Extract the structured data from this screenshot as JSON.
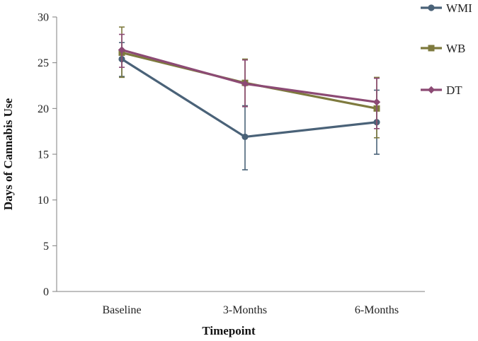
{
  "colors": {
    "WMI": "#4a6278",
    "WB": "#7e7a3e",
    "DT": "#8c4a74",
    "axis": "#7f7f7f",
    "text": "#222222"
  },
  "chart_data": {
    "type": "line",
    "title": "",
    "xlabel": "Timepoint",
    "ylabel": "Days of Cannabis Use",
    "categories": [
      "Baseline",
      "3-Months",
      "6-Months"
    ],
    "ylim": [
      0,
      30
    ],
    "yticks": [
      0,
      5,
      10,
      15,
      20,
      25,
      30
    ],
    "grid": false,
    "legend_position": "right",
    "series": [
      {
        "name": "WMI",
        "marker": "circle",
        "values": [
          25.4,
          16.9,
          18.5
        ],
        "error_low": [
          23.5,
          13.3,
          15.0
        ],
        "error_high": [
          27.2,
          20.3,
          22.0
        ]
      },
      {
        "name": "WB",
        "marker": "square",
        "values": [
          26.1,
          22.8,
          20.0
        ],
        "error_low": [
          23.4,
          20.2,
          16.8
        ],
        "error_high": [
          28.9,
          25.4,
          23.4
        ]
      },
      {
        "name": "DT",
        "marker": "diamond",
        "values": [
          26.4,
          22.7,
          20.7
        ],
        "error_low": [
          24.5,
          20.2,
          17.8
        ],
        "error_high": [
          28.1,
          25.3,
          23.3
        ]
      }
    ]
  }
}
